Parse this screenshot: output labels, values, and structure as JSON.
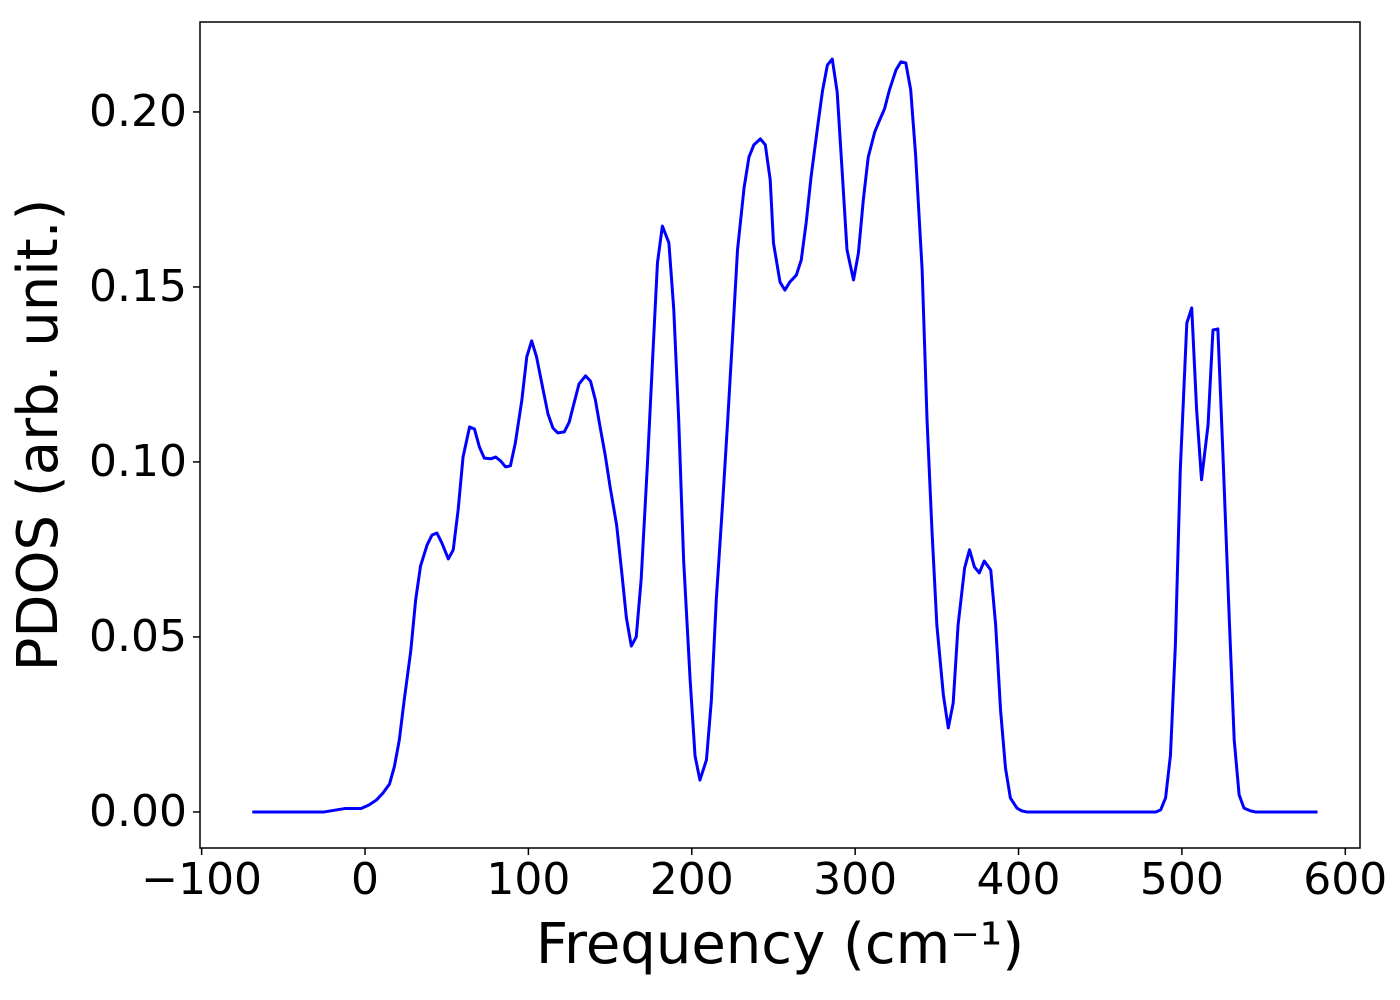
{
  "chart_data": {
    "type": "line",
    "xlabel": "Frequency (cm⁻¹)",
    "ylabel": "PDOS (arb. unit.)",
    "xlim": [
      -101,
      609
    ],
    "ylim": [
      -0.0103,
      0.2257
    ],
    "xticks": [
      {
        "value": -100,
        "label": "−100"
      },
      0,
      100,
      200,
      300,
      400,
      500,
      600
    ],
    "yticks": [
      {
        "value": 0,
        "label": "0.00"
      },
      0.05,
      {
        "value": 0.1,
        "label": "0.10"
      },
      0.15,
      {
        "value": 0.2,
        "label": "0.20"
      }
    ],
    "grid": false,
    "series": [
      {
        "name": "PDOS",
        "color": "#0000ff",
        "x": [
          -69,
          -25,
          -12,
          -2.4,
          2.4,
          7,
          11,
          15,
          18,
          21,
          24,
          28,
          31,
          34,
          38,
          41,
          44,
          47,
          51,
          54,
          57,
          60,
          64,
          67,
          70,
          73,
          77,
          80,
          83,
          86,
          89,
          92,
          96,
          99,
          102,
          105,
          109,
          112,
          115,
          118,
          122,
          125,
          128,
          131,
          135,
          138,
          141,
          144,
          147,
          150,
          154,
          157,
          160,
          163,
          166,
          169,
          173,
          176,
          179,
          182,
          186,
          189,
          192,
          195,
          199,
          202,
          205,
          209,
          212,
          215,
          219,
          222,
          225,
          228,
          232,
          235,
          238,
          242,
          245,
          248,
          250,
          254,
          257,
          260,
          264,
          267,
          270,
          273,
          277,
          280,
          283,
          286,
          289,
          292,
          295,
          299,
          302,
          305,
          308,
          312,
          315,
          318,
          321,
          325,
          328,
          331,
          334,
          337,
          341,
          344,
          347,
          350,
          354,
          357,
          360,
          363,
          367,
          370,
          373,
          376,
          379,
          383,
          386,
          389,
          392,
          395,
          399,
          402,
          405,
          484,
          487,
          490,
          493,
          496,
          499,
          503,
          506,
          509,
          512,
          516,
          519,
          522,
          525,
          529,
          532,
          535,
          538,
          542,
          545,
          583
        ],
        "values": [
          0,
          0,
          0.001,
          0.001,
          0.002,
          0.0034,
          0.0054,
          0.008,
          0.013,
          0.0206,
          0.032,
          0.046,
          0.0606,
          0.0703,
          0.0763,
          0.0791,
          0.0797,
          0.0769,
          0.0723,
          0.0749,
          0.0863,
          0.1014,
          0.11,
          0.1094,
          0.1043,
          0.1011,
          0.1009,
          0.1014,
          0.1003,
          0.0986,
          0.0989,
          0.1054,
          0.1177,
          0.13,
          0.1346,
          0.13,
          0.1206,
          0.1137,
          0.1097,
          0.1083,
          0.1086,
          0.1114,
          0.1169,
          0.1223,
          0.1246,
          0.1231,
          0.1177,
          0.1097,
          0.102,
          0.0929,
          0.082,
          0.0691,
          0.0554,
          0.0474,
          0.05,
          0.0663,
          0.1006,
          0.1291,
          0.1569,
          0.1674,
          0.1626,
          0.1434,
          0.112,
          0.072,
          0.0377,
          0.016,
          0.0091,
          0.0149,
          0.032,
          0.0606,
          0.0891,
          0.112,
          0.136,
          0.1606,
          0.1783,
          0.1871,
          0.1906,
          0.1923,
          0.1906,
          0.1806,
          0.1626,
          0.1514,
          0.1491,
          0.1514,
          0.1534,
          0.1577,
          0.1683,
          0.1814,
          0.1957,
          0.206,
          0.2134,
          0.2151,
          0.2057,
          0.1834,
          0.1606,
          0.152,
          0.1597,
          0.1749,
          0.1871,
          0.1943,
          0.1977,
          0.2009,
          0.2063,
          0.212,
          0.2143,
          0.214,
          0.2063,
          0.1877,
          0.1549,
          0.112,
          0.0806,
          0.0534,
          0.0334,
          0.024,
          0.0311,
          0.0534,
          0.0697,
          0.0749,
          0.07,
          0.0683,
          0.0717,
          0.0691,
          0.0534,
          0.0291,
          0.0126,
          0.004,
          0.0011,
          0.0003,
          0,
          0,
          0.0006,
          0.004,
          0.0163,
          0.0477,
          0.0977,
          0.1397,
          0.144,
          0.1149,
          0.0949,
          0.1106,
          0.1377,
          0.138,
          0.1034,
          0.0549,
          0.0206,
          0.0049,
          0.0011,
          0.0003,
          0,
          0
        ]
      }
    ]
  }
}
